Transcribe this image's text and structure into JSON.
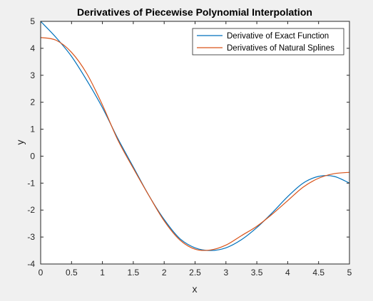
{
  "colors": {
    "figure_background": "#f0f0f0",
    "axes_background": "#ffffff",
    "axis_color": "#262626",
    "series_exact": "#0072BD",
    "series_spline": "#D95319"
  },
  "chart_data": {
    "type": "line",
    "title": "Derivatives of Piecewise Polynomial Interpolation",
    "xlabel": "x",
    "ylabel": "y",
    "xlim": [
      0,
      5
    ],
    "ylim": [
      -4,
      5
    ],
    "xticks": [
      0,
      0.5,
      1,
      1.5,
      2,
      2.5,
      3,
      3.5,
      4,
      4.5,
      5
    ],
    "xtick_labels": [
      "0",
      "0.5",
      "1",
      "1.5",
      "2",
      "2.5",
      "3",
      "3.5",
      "4",
      "4.5",
      "5"
    ],
    "yticks": [
      -4,
      -3,
      -2,
      -1,
      0,
      1,
      2,
      3,
      4,
      5
    ],
    "ytick_labels": [
      "-4",
      "-3",
      "-2",
      "-1",
      "0",
      "1",
      "2",
      "3",
      "4",
      "5"
    ],
    "grid": false,
    "legend_position": "top-right",
    "series": [
      {
        "name": "Derivative of Exact Function",
        "color": "#0072BD",
        "x": [
          0,
          0.25,
          0.5,
          0.75,
          1,
          1.25,
          1.5,
          1.75,
          2,
          2.25,
          2.5,
          2.75,
          3,
          3.25,
          3.5,
          3.75,
          4,
          4.25,
          4.5,
          4.75,
          5
        ],
        "y": [
          5,
          4.4,
          3.7,
          2.8,
          1.8,
          0.65,
          -0.4,
          -1.45,
          -2.35,
          -3.05,
          -3.4,
          -3.5,
          -3.4,
          -3.1,
          -2.65,
          -2.1,
          -1.5,
          -1.0,
          -0.75,
          -0.75,
          -1.0
        ]
      },
      {
        "name": "Derivatives of Natural Splines",
        "color": "#D95319",
        "x": [
          0,
          0.25,
          0.5,
          0.75,
          1,
          1.25,
          1.5,
          1.75,
          2,
          2.25,
          2.5,
          2.75,
          3,
          3.25,
          3.5,
          3.75,
          4,
          4.25,
          4.5,
          4.75,
          5
        ],
        "y": [
          4.4,
          4.3,
          3.85,
          3.05,
          1.9,
          0.6,
          -0.45,
          -1.45,
          -2.4,
          -3.1,
          -3.45,
          -3.48,
          -3.3,
          -2.95,
          -2.6,
          -2.15,
          -1.65,
          -1.15,
          -0.82,
          -0.65,
          -0.6
        ]
      }
    ]
  }
}
